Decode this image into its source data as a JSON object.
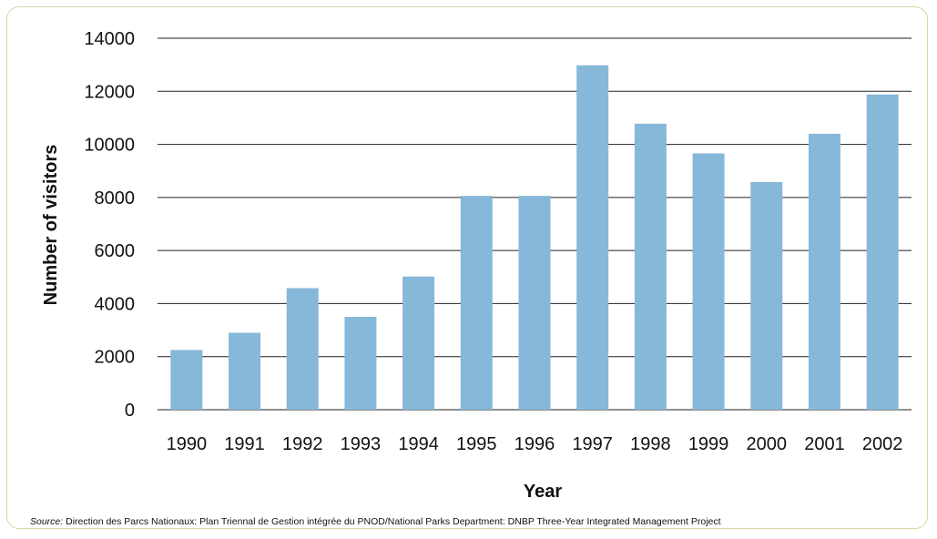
{
  "chart_data": {
    "type": "bar",
    "categories": [
      "1990",
      "1991",
      "1992",
      "1993",
      "1994",
      "1995",
      "1996",
      "1997",
      "1998",
      "1999",
      "2000",
      "2001",
      "2002"
    ],
    "values": [
      2250,
      2900,
      4580,
      3500,
      5020,
      8060,
      8060,
      12980,
      10780,
      9660,
      8580,
      10400,
      11880
    ],
    "xlabel": "Year",
    "ylabel": "Number of visitors",
    "ylim": [
      0,
      14000
    ],
    "yticks": [
      "0",
      "2000",
      "4000",
      "6000",
      "8000",
      "10000",
      "12000",
      "14000"
    ],
    "grid": true,
    "bar_color": "#86b8d9"
  },
  "source": {
    "label": "Source:",
    "text": " Direction des Parcs Nationaux: Plan Triennal de Gestion intégrée du PNOD/National Parks Department: DNBP Three-Year Integrated Management Project"
  }
}
